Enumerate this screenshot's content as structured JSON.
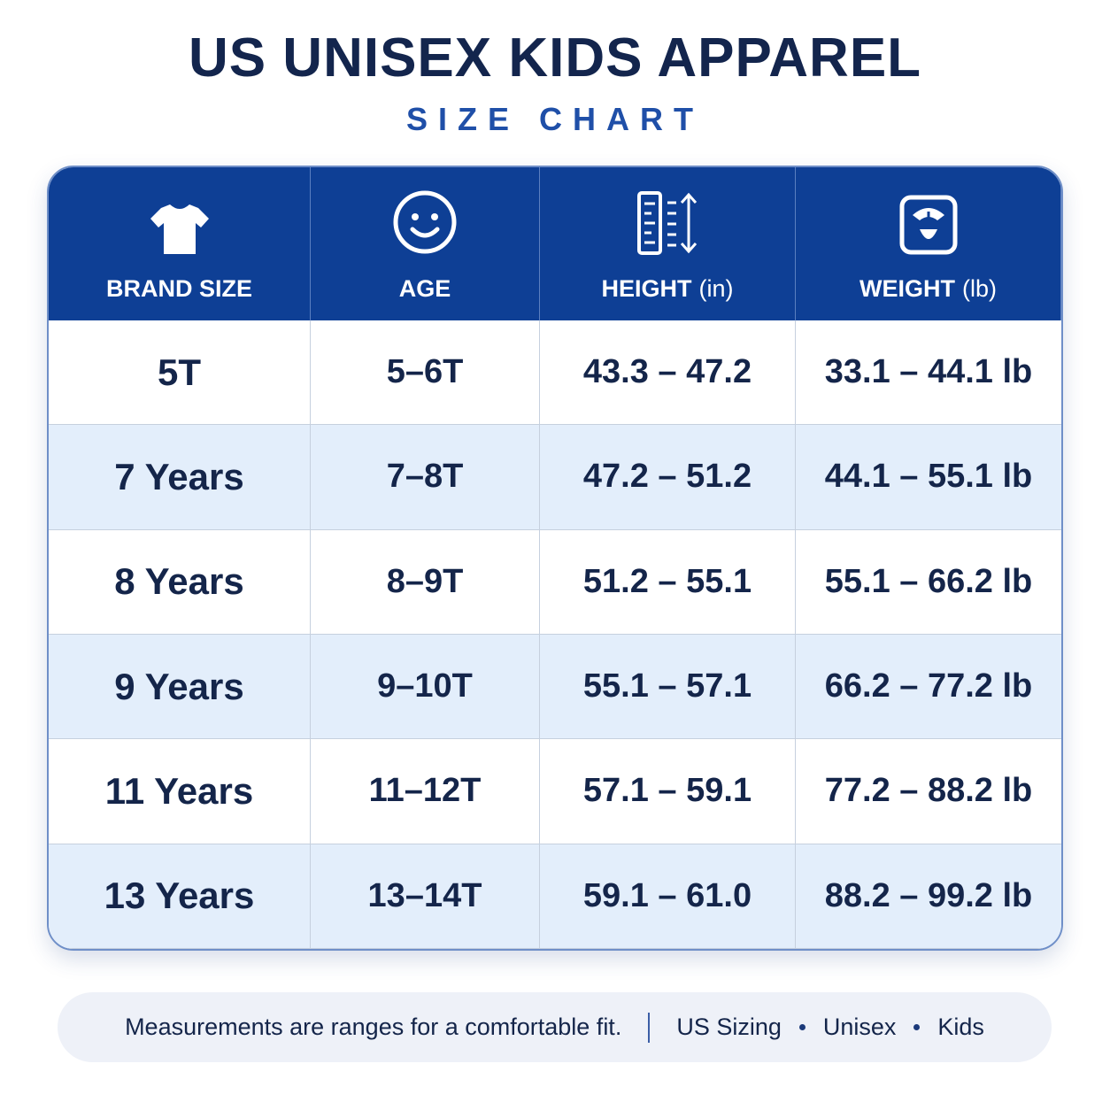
{
  "header": {
    "title": "US UNISEX KIDS APPAREL",
    "subtitle": "SIZE CHART"
  },
  "table": {
    "columns": [
      {
        "label": "BRAND SIZE"
      },
      {
        "label": "AGE"
      },
      {
        "label": "HEIGHT",
        "unit": "(in)"
      },
      {
        "label": "WEIGHT",
        "unit": "(lb)"
      }
    ],
    "rows": [
      [
        "5T",
        "5–6T",
        "43.3 – 47.2",
        "33.1 – 44.1 lb"
      ],
      [
        "7 Years",
        "7–8T",
        "47.2 – 51.2",
        "44.1 – 55.1 lb"
      ],
      [
        "8 Years",
        "8–9T",
        "51.2 – 55.1",
        "55.1 – 66.2 lb"
      ],
      [
        "9 Years",
        "9–10T",
        "55.1 – 57.1",
        "66.2 – 77.2 lb"
      ],
      [
        "11 Years",
        "11–12T",
        "57.1 – 59.1",
        "77.2 – 88.2 lb"
      ],
      [
        "13 Years",
        "13–14T",
        "59.1 – 61.0",
        "88.2 – 99.2 lb"
      ]
    ]
  },
  "footer": {
    "note": "Measurements are ranges for a comfortable fit.",
    "tags": [
      "US Sizing",
      "Unisex",
      "Kids"
    ]
  }
}
